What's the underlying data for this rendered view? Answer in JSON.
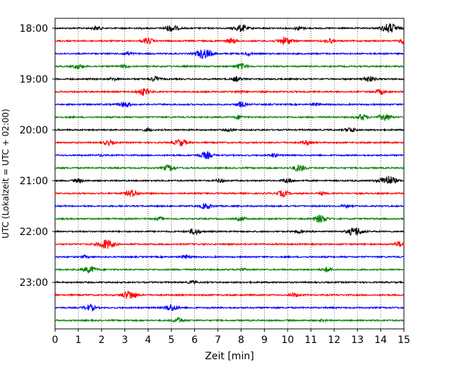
{
  "chart_data": {
    "type": "line",
    "title": "",
    "xlabel": "Zeit  [min]",
    "ylabel": "UTC (Lokalzeit = UTC + 02:00)",
    "xlim": [
      0,
      15
    ],
    "x_ticks": [
      "0",
      "1",
      "2",
      "3",
      "4",
      "5",
      "6",
      "7",
      "8",
      "9",
      "10",
      "11",
      "12",
      "13",
      "14",
      "15"
    ],
    "y_tick_labels": [
      "18:00",
      "19:00",
      "20:00",
      "21:00",
      "22:00",
      "23:00"
    ],
    "grid": "vertical dotted",
    "line_colors": [
      "#000000",
      "#ff0000",
      "#0000ff",
      "#008000"
    ],
    "rows": [
      "18:00",
      "18:15",
      "18:30",
      "18:45",
      "19:00",
      "19:15",
      "19:30",
      "19:45",
      "20:00",
      "20:15",
      "20:30",
      "20:45",
      "21:00",
      "21:15",
      "21:30",
      "21:45",
      "22:00",
      "22:15",
      "22:30",
      "22:45",
      "23:00",
      "23:15",
      "23:30",
      "23:45"
    ],
    "events": [
      [
        [
          1.8,
          0.4
        ],
        [
          5.0,
          0.7
        ],
        [
          8.0,
          0.7
        ],
        [
          10.5,
          0.4
        ],
        [
          14.4,
          1.0
        ]
      ],
      [
        [
          4.0,
          0.6
        ],
        [
          7.6,
          0.5
        ],
        [
          9.9,
          0.8
        ],
        [
          11.8,
          0.4
        ],
        [
          15.0,
          0.5
        ]
      ],
      [
        [
          3.1,
          0.4
        ],
        [
          6.4,
          1.0
        ],
        [
          8.3,
          0.3
        ]
      ],
      [
        [
          1.0,
          0.5
        ],
        [
          3.0,
          0.3
        ],
        [
          8.0,
          0.6
        ]
      ],
      [
        [
          2.5,
          0.3
        ],
        [
          4.3,
          0.5
        ],
        [
          7.8,
          0.5
        ],
        [
          13.5,
          0.6
        ]
      ],
      [
        [
          3.8,
          0.7
        ],
        [
          8.0,
          0.3
        ],
        [
          14.0,
          0.5
        ]
      ],
      [
        [
          3.0,
          0.6
        ],
        [
          8.0,
          0.5
        ],
        [
          11.2,
          0.3
        ]
      ],
      [
        [
          7.9,
          0.4
        ],
        [
          13.2,
          0.6
        ],
        [
          14.2,
          0.7
        ]
      ],
      [
        [
          4.0,
          0.3
        ],
        [
          7.5,
          0.3
        ],
        [
          12.7,
          0.5
        ]
      ],
      [
        [
          2.3,
          0.5
        ],
        [
          5.4,
          0.7
        ],
        [
          10.8,
          0.4
        ]
      ],
      [
        [
          2.0,
          0.2
        ],
        [
          6.5,
          0.7
        ],
        [
          9.4,
          0.4
        ]
      ],
      [
        [
          4.9,
          0.6
        ],
        [
          10.5,
          0.7
        ]
      ],
      [
        [
          1.0,
          0.4
        ],
        [
          7.1,
          0.4
        ],
        [
          10.0,
          0.5
        ],
        [
          14.3,
          1.0
        ]
      ],
      [
        [
          3.3,
          0.7
        ],
        [
          9.8,
          0.6
        ],
        [
          11.5,
          0.3
        ]
      ],
      [
        [
          6.5,
          0.6
        ],
        [
          12.5,
          0.3
        ]
      ],
      [
        [
          4.5,
          0.3
        ],
        [
          8.0,
          0.4
        ],
        [
          11.4,
          0.8
        ]
      ],
      [
        [
          6.0,
          0.6
        ],
        [
          10.5,
          0.3
        ],
        [
          12.9,
          0.9
        ]
      ],
      [
        [
          2.2,
          1.0
        ],
        [
          14.8,
          0.5
        ]
      ],
      [
        [
          1.3,
          0.3
        ],
        [
          5.6,
          0.4
        ]
      ],
      [
        [
          1.5,
          0.7
        ],
        [
          8.0,
          0.3
        ],
        [
          11.7,
          0.5
        ]
      ],
      [
        [
          5.9,
          0.3
        ]
      ],
      [
        [
          3.2,
          0.9
        ],
        [
          10.3,
          0.4
        ]
      ],
      [
        [
          1.5,
          0.6
        ],
        [
          5.0,
          0.7
        ]
      ],
      [
        [
          5.3,
          0.5
        ],
        [
          11.5,
          0.2
        ]
      ]
    ]
  }
}
